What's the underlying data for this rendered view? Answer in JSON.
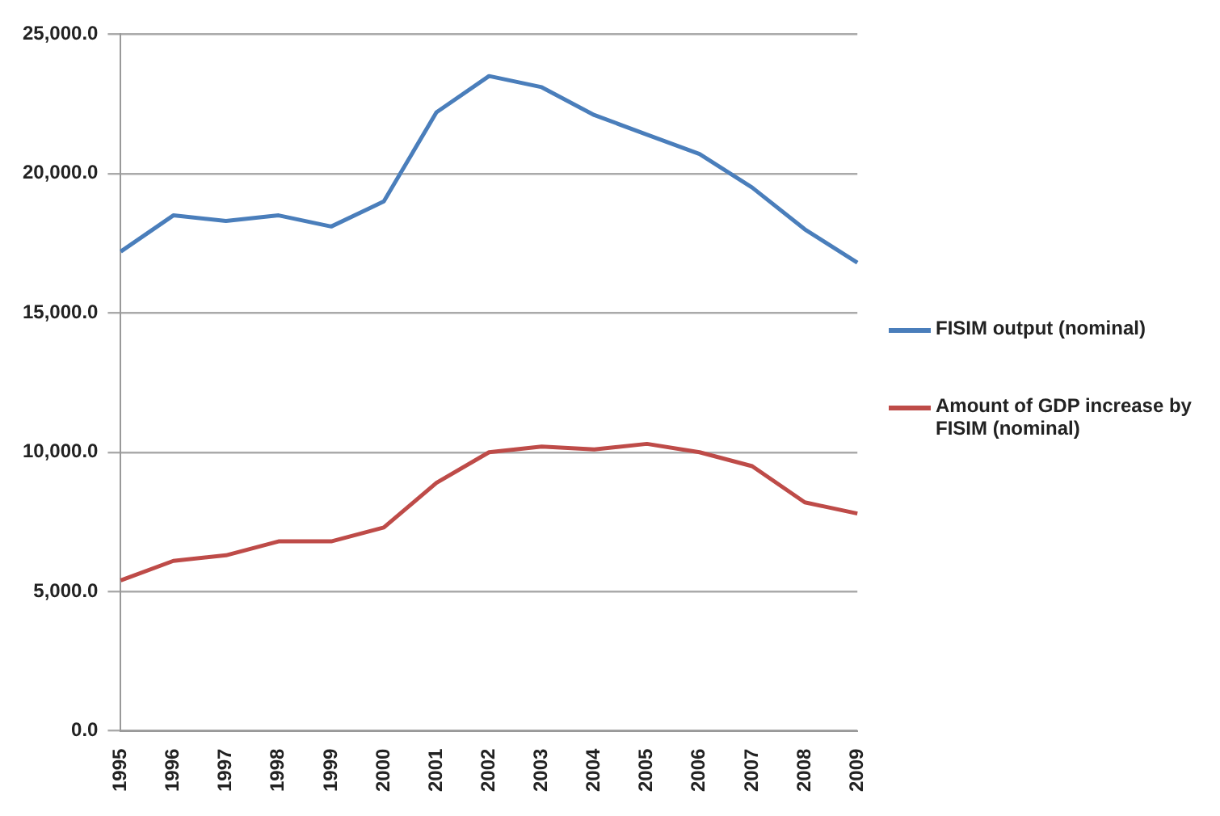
{
  "chart_data": {
    "type": "line",
    "categories": [
      "1995",
      "1996",
      "1997",
      "1998",
      "1999",
      "2000",
      "2001",
      "2002",
      "2003",
      "2004",
      "2005",
      "2006",
      "2007",
      "2008",
      "2009"
    ],
    "series": [
      {
        "name": "FISIM output (nominal)",
        "color": "#4a7ebb",
        "values": [
          17200,
          18500,
          18300,
          18500,
          18100,
          19000,
          22200,
          23500,
          23100,
          22100,
          21400,
          20700,
          19500,
          18000,
          16800
        ]
      },
      {
        "name": "Amount of GDP increase by FISIM (nominal)",
        "color": "#be4b48",
        "values": [
          5400,
          6100,
          6300,
          6800,
          6800,
          7300,
          8900,
          10000,
          10200,
          10100,
          10300,
          10000,
          9500,
          8200,
          7800
        ]
      }
    ],
    "ylim": [
      0,
      25000
    ],
    "yticks": [
      {
        "value": 0,
        "label": "0.0"
      },
      {
        "value": 5000,
        "label": "5,000.0"
      },
      {
        "value": 10000,
        "label": "10,000.0"
      },
      {
        "value": 15000,
        "label": "15,000.0"
      },
      {
        "value": 20000,
        "label": "20,000.0"
      },
      {
        "value": 25000,
        "label": "25,000.0"
      }
    ],
    "grid": "y",
    "legend": "right",
    "marker": "none",
    "line_style": "solid"
  }
}
